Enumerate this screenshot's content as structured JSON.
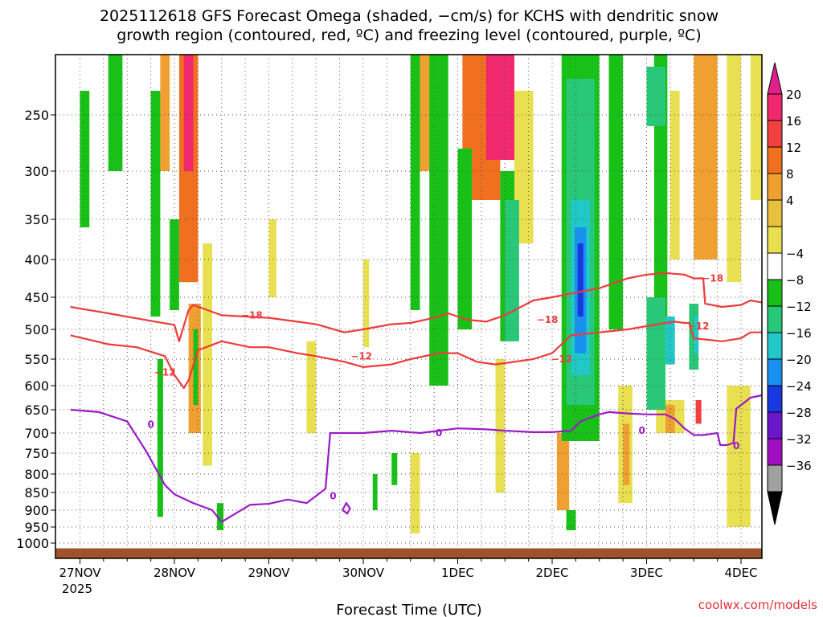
{
  "chart_data": {
    "type": "time-height contour",
    "title_line1": "2025112618 GFS Forecast Omega (shaded, −cm/s) for KCHS with dendritic snow",
    "title_line2": "growth region (contoured, red, ºC) and freezing level (contoured, purple, ºC)",
    "xlabel": "Forecast Time (UTC)",
    "x_ticks": [
      "27NOV",
      "28NOV",
      "29NOV",
      "30NOV",
      "1DEC",
      "2DEC",
      "3DEC",
      "4DEC"
    ],
    "x_year": "2025",
    "x_range_days": [
      -0.1,
      7.25
    ],
    "y_ticks": [
      250,
      300,
      350,
      400,
      450,
      500,
      550,
      600,
      650,
      700,
      750,
      800,
      850,
      900,
      950,
      1000
    ],
    "y_range_hpa": [
      200,
      1015
    ],
    "colorbar": {
      "labels": [
        "20",
        "16",
        "12",
        "8",
        "4",
        "−4",
        "−8",
        "−12",
        "−16",
        "−20",
        "−24",
        "−28",
        "−32",
        "−36"
      ],
      "colors": [
        "#f0286e",
        "#f04040",
        "#f07020",
        "#f0a030",
        "#e8c040",
        "#e8e050",
        "#ffffff",
        "#18c018",
        "#28c878",
        "#20c8c8",
        "#1890f0",
        "#1838e0",
        "#6818c8",
        "#a010c0",
        "#a0a0a0"
      ],
      "top_arrow_color": "#e0208a",
      "bottom_arrow_color": "#000000"
    },
    "series": [
      {
        "name": "-18",
        "color": "#ee3b3b",
        "t": [
          -0.1,
          0.3,
          0.8,
          1.0,
          1.05,
          1.15,
          1.2,
          1.5,
          2.0,
          2.3,
          2.5,
          2.8,
          3.0,
          3.3,
          3.5,
          3.75,
          3.9,
          4.1,
          4.3,
          4.5,
          4.8,
          5.0,
          5.2,
          5.5,
          5.8,
          6.0,
          6.2,
          6.4,
          6.5,
          6.6,
          6.62,
          6.8,
          7.0,
          7.1,
          7.25
        ],
        "p": [
          465,
          475,
          488,
          493,
          520,
          470,
          462,
          478,
          482,
          488,
          492,
          505,
          500,
          492,
          490,
          482,
          475,
          485,
          488,
          478,
          455,
          450,
          445,
          438,
          425,
          420,
          418,
          420,
          425,
          425,
          460,
          465,
          462,
          455,
          458
        ]
      },
      {
        "name": "-12",
        "color": "#ee3b3b",
        "t": [
          -0.1,
          0.3,
          0.6,
          0.9,
          1.0,
          1.1,
          1.15,
          1.25,
          1.5,
          1.8,
          2.0,
          2.3,
          2.5,
          2.8,
          3.0,
          3.3,
          3.5,
          3.8,
          4.0,
          4.2,
          4.4,
          4.6,
          4.8,
          5.0,
          5.2,
          5.5,
          5.8,
          6.0,
          6.2,
          6.3,
          6.4,
          6.45,
          6.5,
          6.8,
          7.0,
          7.1,
          7.25
        ],
        "p": [
          510,
          525,
          530,
          545,
          580,
          605,
          590,
          535,
          520,
          530,
          530,
          540,
          545,
          555,
          565,
          560,
          550,
          540,
          540,
          555,
          560,
          555,
          550,
          540,
          510,
          505,
          500,
          495,
          490,
          488,
          490,
          490,
          515,
          520,
          515,
          505,
          505
        ]
      },
      {
        "name": "0",
        "color": "#9a1ac8",
        "t": [
          -0.1,
          0.2,
          0.5,
          0.7,
          0.9,
          1.0,
          1.2,
          1.4,
          1.5,
          1.6,
          1.8,
          2.0,
          2.2,
          2.4,
          2.6,
          2.65,
          3.0,
          3.3,
          3.6,
          4.0,
          4.3,
          4.5,
          4.8,
          5.0,
          5.2,
          5.3,
          5.5,
          5.6,
          5.8,
          6.0,
          6.2,
          6.3,
          6.4,
          6.5,
          6.6,
          6.75,
          6.78,
          6.85,
          6.92,
          6.95,
          7.1,
          7.25
        ],
        "p": [
          650,
          655,
          675,
          745,
          830,
          855,
          880,
          900,
          935,
          918,
          885,
          882,
          870,
          880,
          840,
          700,
          700,
          695,
          700,
          690,
          692,
          695,
          698,
          698,
          695,
          675,
          660,
          655,
          658,
          660,
          660,
          670,
          690,
          705,
          705,
          700,
          730,
          730,
          725,
          648,
          625,
          620
        ]
      }
    ],
    "freezing_island": {
      "t": [
        2.78,
        2.82,
        2.86,
        2.83,
        2.78
      ],
      "p": [
        900,
        880,
        895,
        910,
        900
      ]
    },
    "contour_labels": [
      {
        "text": "−18",
        "t": 1.82,
        "p": 478,
        "color": "#ee3b3b"
      },
      {
        "text": "−12",
        "t": 0.9,
        "p": 575,
        "color": "#ee3b3b"
      },
      {
        "text": "−12",
        "t": 2.98,
        "p": 545,
        "color": "#ee3b3b"
      },
      {
        "text": "−18",
        "t": 4.95,
        "p": 485,
        "color": "#ee3b3b"
      },
      {
        "text": "−12",
        "t": 5.1,
        "p": 550,
        "color": "#ee3b3b"
      },
      {
        "text": "−18",
        "t": 6.7,
        "p": 425,
        "color": "#ee3b3b"
      },
      {
        "text": "−12",
        "t": 6.55,
        "p": 495,
        "color": "#ee3b3b"
      },
      {
        "text": "0",
        "t": 0.75,
        "p": 682,
        "color": "#9a1ac8"
      },
      {
        "text": "0",
        "t": 2.68,
        "p": 860,
        "color": "#9a1ac8"
      },
      {
        "text": "0",
        "t": 3.8,
        "p": 700,
        "color": "#9a1ac8"
      },
      {
        "text": "0",
        "t": 5.95,
        "p": 695,
        "color": "#9a1ac8"
      },
      {
        "text": "0",
        "t": 6.95,
        "p": 732,
        "color": "#9a1ac8"
      }
    ],
    "shading_regions": [
      {
        "t0": 1.05,
        "t1": 1.25,
        "p0": 200,
        "p1": 430,
        "value": 12
      },
      {
        "t0": 1.1,
        "t1": 1.2,
        "p0": 200,
        "p1": 300,
        "value": 20
      },
      {
        "t0": 1.15,
        "t1": 1.28,
        "p0": 460,
        "p1": 700,
        "value": 8
      },
      {
        "t0": 0.85,
        "t1": 0.95,
        "p0": 200,
        "p1": 300,
        "value": 8
      },
      {
        "t0": 1.3,
        "t1": 1.4,
        "p0": 380,
        "p1": 780,
        "value": 4
      },
      {
        "t0": 2.0,
        "t1": 2.08,
        "p0": 350,
        "p1": 450,
        "value": 4
      },
      {
        "t0": 3.0,
        "t1": 3.06,
        "p0": 400,
        "p1": 530,
        "value": 4
      },
      {
        "t0": 3.6,
        "t1": 3.75,
        "p0": 200,
        "p1": 300,
        "value": 8
      },
      {
        "t0": 4.05,
        "t1": 4.45,
        "p0": 200,
        "p1": 330,
        "value": 12
      },
      {
        "t0": 4.3,
        "t1": 4.6,
        "p0": 200,
        "p1": 290,
        "value": 20
      },
      {
        "t0": 4.6,
        "t1": 4.8,
        "p0": 230,
        "p1": 380,
        "value": 4
      },
      {
        "t0": 5.6,
        "t1": 5.7,
        "p0": 230,
        "p1": 310,
        "value": 4
      },
      {
        "t0": 6.25,
        "t1": 6.35,
        "p0": 230,
        "p1": 400,
        "value": 4
      },
      {
        "t0": 6.5,
        "t1": 6.75,
        "p0": 200,
        "p1": 400,
        "value": 8
      },
      {
        "t0": 6.85,
        "t1": 7.0,
        "p0": 200,
        "p1": 430,
        "value": 4
      },
      {
        "t0": 7.1,
        "t1": 7.22,
        "p0": 200,
        "p1": 330,
        "value": 4
      },
      {
        "t0": 5.05,
        "t1": 5.18,
        "p0": 700,
        "p1": 900,
        "value": 8
      },
      {
        "t0": 5.7,
        "t1": 5.85,
        "p0": 600,
        "p1": 880,
        "value": 4
      },
      {
        "t0": 5.75,
        "t1": 5.82,
        "p0": 680,
        "p1": 830,
        "value": 8
      },
      {
        "t0": 6.1,
        "t1": 6.4,
        "p0": 630,
        "p1": 700,
        "value": 4
      },
      {
        "t0": 6.2,
        "t1": 6.3,
        "p0": 640,
        "p1": 700,
        "value": 8
      },
      {
        "t0": 6.52,
        "t1": 6.58,
        "p0": 630,
        "p1": 680,
        "value": 16
      },
      {
        "t0": 6.85,
        "t1": 7.1,
        "p0": 600,
        "p1": 950,
        "value": 4
      },
      {
        "t0": 2.4,
        "t1": 2.5,
        "p0": 520,
        "p1": 700,
        "value": 4
      },
      {
        "t0": 3.5,
        "t1": 3.6,
        "p0": 750,
        "p1": 970,
        "value": 4
      },
      {
        "t0": 4.4,
        "t1": 4.5,
        "p0": 550,
        "p1": 850,
        "value": 4
      },
      {
        "t0": 0.0,
        "t1": 0.1,
        "p0": 230,
        "p1": 360,
        "value": -8
      },
      {
        "t0": 0.3,
        "t1": 0.45,
        "p0": 200,
        "p1": 300,
        "value": -8
      },
      {
        "t0": 0.75,
        "t1": 0.85,
        "p0": 230,
        "p1": 480,
        "value": -8
      },
      {
        "t0": 0.95,
        "t1": 1.05,
        "p0": 350,
        "p1": 470,
        "value": -8
      },
      {
        "t0": 1.2,
        "t1": 1.25,
        "p0": 500,
        "p1": 640,
        "value": -8
      },
      {
        "t0": 0.82,
        "t1": 0.88,
        "p0": 550,
        "p1": 920,
        "value": -8
      },
      {
        "t0": 1.45,
        "t1": 1.52,
        "p0": 880,
        "p1": 960,
        "value": -8
      },
      {
        "t0": 3.5,
        "t1": 3.6,
        "p0": 200,
        "p1": 470,
        "value": -8
      },
      {
        "t0": 3.7,
        "t1": 3.9,
        "p0": 200,
        "p1": 600,
        "value": -8
      },
      {
        "t0": 4.0,
        "t1": 4.15,
        "p0": 280,
        "p1": 500,
        "value": -8
      },
      {
        "t0": 4.45,
        "t1": 4.6,
        "p0": 300,
        "p1": 520,
        "value": -8
      },
      {
        "t0": 3.1,
        "t1": 3.15,
        "p0": 800,
        "p1": 900,
        "value": -8
      },
      {
        "t0": 3.3,
        "t1": 3.36,
        "p0": 750,
        "p1": 830,
        "value": -8
      },
      {
        "t0": 4.5,
        "t1": 4.65,
        "p0": 330,
        "p1": 520,
        "value": -12
      },
      {
        "t0": 5.1,
        "t1": 5.5,
        "p0": 200,
        "p1": 720,
        "value": -8
      },
      {
        "t0": 5.15,
        "t1": 5.45,
        "p0": 220,
        "p1": 640,
        "value": -12
      },
      {
        "t0": 5.2,
        "t1": 5.4,
        "p0": 330,
        "p1": 580,
        "value": -16
      },
      {
        "t0": 5.24,
        "t1": 5.36,
        "p0": 360,
        "p1": 540,
        "value": -20
      },
      {
        "t0": 5.27,
        "t1": 5.33,
        "p0": 380,
        "p1": 480,
        "value": -24
      },
      {
        "t0": 5.6,
        "t1": 5.75,
        "p0": 200,
        "p1": 500,
        "value": -8
      },
      {
        "t0": 6.08,
        "t1": 6.22,
        "p0": 200,
        "p1": 550,
        "value": -8
      },
      {
        "t0": 6.0,
        "t1": 6.2,
        "p0": 450,
        "p1": 650,
        "value": -12
      },
      {
        "t0": 6.2,
        "t1": 6.3,
        "p0": 480,
        "p1": 560,
        "value": -16
      },
      {
        "t0": 6.45,
        "t1": 6.55,
        "p0": 460,
        "p1": 570,
        "value": -12
      },
      {
        "t0": 6.5,
        "t1": 6.55,
        "p0": 480,
        "p1": 540,
        "value": -16
      },
      {
        "t0": 5.15,
        "t1": 5.25,
        "p0": 900,
        "p1": 960,
        "value": -8
      },
      {
        "t0": 6.0,
        "t1": 6.2,
        "p0": 210,
        "p1": 260,
        "value": -12
      }
    ],
    "ground": {
      "from_hpa": 1005,
      "to_hpa": 1015,
      "color": "#a0522d"
    },
    "grid": true,
    "credit": "coolwx.com/models"
  }
}
